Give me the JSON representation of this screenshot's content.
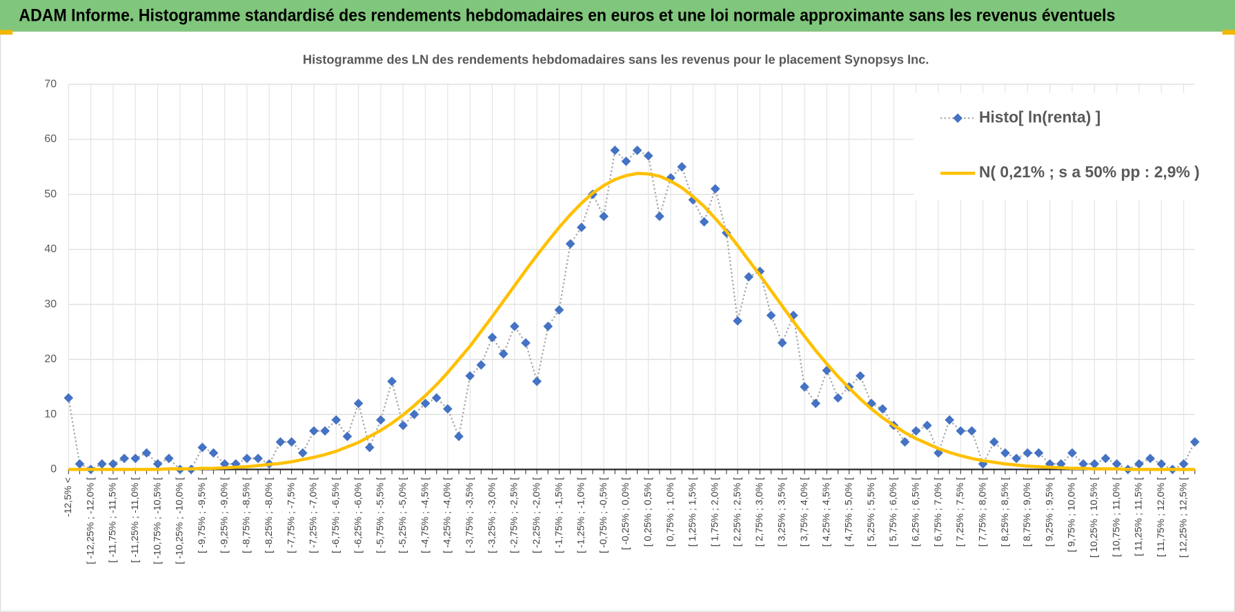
{
  "header": {
    "title": "ADAM Informe. Histogramme standardisé des rendements hebdomadaires en euros et une loi normale approximante sans les revenus éventuels"
  },
  "chart_data": {
    "type": "line",
    "title": "Histogramme des LN des rendements hebdomadaires sans les revenus pour le placement Synopsys Inc.",
    "categories": [
      "-12,5% <",
      null,
      "[ -12,25% ; -12,0% [",
      null,
      "[ -11,75% ; -11,5% [",
      null,
      "[ -11,25% ; -11,0% [",
      null,
      "[ -10,75% ; -10,5% [",
      null,
      "[ -10,25% ; -10,0% [",
      null,
      "[ -9,75% ; -9,5% [",
      null,
      "[ -9,25% ; -9,0% [",
      null,
      "[ -8,75% ; -8,5% [",
      null,
      "[ -8,25% ; -8,0% [",
      null,
      "[ -7,75% ; -7,5% [",
      null,
      "[ -7,25% ; -7,0% [",
      null,
      "[ -6,75% ; -6,5% [",
      null,
      "[ -6,25% ; -6,0% [",
      null,
      "[ -5,75% ; -5,5% [",
      null,
      "[ -5,25% ; -5,0% [",
      null,
      "[ -4,75% ; -4,5% [",
      null,
      "[ -4,25% ; -4,0% [",
      null,
      "[ -3,75% ; -3,5% [",
      null,
      "[ -3,25% ; -3,0% [",
      null,
      "[ -2,75% ; -2,5% [",
      null,
      "[ -2,25% ; -2,0% [",
      null,
      "[ -1,75% ; -1,5% [",
      null,
      "[ -1,25% ; -1,0% [",
      null,
      "[ -0,75% ; -0,5% [",
      null,
      "[ -0,25% ; 0,0% [",
      null,
      "[ 0,25% ; 0,5% [",
      null,
      "[ 0,75% ; 1,0% [",
      null,
      "[ 1,25% ; 1,5% [",
      null,
      "[ 1,75% ; 2,0% [",
      null,
      "[ 2,25% ; 2,5% [",
      null,
      "[ 2,75% ; 3,0% [",
      null,
      "[ 3,25% ; 3,5% [",
      null,
      "[ 3,75% ; 4,0% [",
      null,
      "[ 4,25% ; 4,5% [",
      null,
      "[ 4,75% ; 5,0% [",
      null,
      "[ 5,25% ; 5,5% [",
      null,
      "[ 5,75% ; 6,0% [",
      null,
      "[ 6,25% ; 6,5% [",
      null,
      "[ 6,75% ; 7,0% [",
      null,
      "[ 7,25% ; 7,5% [",
      null,
      "[ 7,75% ; 8,0% [",
      null,
      "[ 8,25% ; 8,5% [",
      null,
      "[ 8,75% ; 9,0% [",
      null,
      "[ 9,25% ; 9,5% [",
      null,
      "[ 9,75% ; 10,0% [",
      null,
      "[ 10,25% ; 10,5% [",
      null,
      "[ 10,75% ; 11,0% [",
      null,
      "[ 11,25% ; 11,5% [",
      null,
      "[ 11,75% ; 12,0% [",
      null,
      "[ 12,25% ; 12,5% [",
      null
    ],
    "series": [
      {
        "name": "Histo[ ln(renta) ]",
        "color": "#4472c4",
        "line_color": "#a6a6a6",
        "marker": "diamond",
        "values": [
          13,
          1,
          0,
          1,
          1,
          2,
          2,
          3,
          1,
          2,
          0,
          0,
          4,
          3,
          1,
          1,
          2,
          2,
          1,
          5,
          5,
          3,
          7,
          7,
          9,
          6,
          12,
          4,
          9,
          16,
          8,
          10,
          12,
          13,
          11,
          6,
          17,
          19,
          24,
          21,
          26,
          23,
          16,
          26,
          29,
          41,
          44,
          50,
          46,
          58,
          56,
          58,
          57,
          46,
          53,
          55,
          49,
          45,
          51,
          43,
          27,
          35,
          36,
          28,
          23,
          28,
          15,
          12,
          18,
          13,
          15,
          17,
          12,
          11,
          8,
          5,
          7,
          8,
          3,
          9,
          7,
          7,
          1,
          5,
          3,
          2,
          3,
          3,
          1,
          1,
          3,
          1,
          1,
          2,
          1,
          0,
          1,
          2,
          1,
          0,
          1,
          5
        ]
      },
      {
        "name": "N( 0,21% ; s a 50% pp : 2,9% )",
        "color": "#ffc000",
        "values": [
          0,
          0,
          0,
          0,
          0,
          0,
          0,
          0,
          0,
          0.1,
          0.1,
          0.1,
          0.2,
          0.2,
          0.3,
          0.4,
          0.5,
          0.7,
          0.9,
          1.1,
          1.4,
          1.8,
          2.2,
          2.7,
          3.3,
          4.1,
          4.9,
          6.0,
          7.1,
          8.4,
          9.9,
          11.6,
          13.4,
          15.4,
          17.6,
          20.0,
          22.4,
          25.1,
          27.8,
          30.6,
          33.4,
          36.2,
          38.9,
          41.5,
          44.0,
          46.3,
          48.4,
          50.2,
          51.6,
          52.7,
          53.4,
          53.8,
          53.7,
          53.3,
          52.4,
          51.2,
          49.6,
          47.8,
          45.6,
          43.3,
          40.7,
          38.0,
          35.3,
          32.5,
          29.7,
          26.9,
          24.2,
          21.6,
          19.2,
          16.9,
          14.8,
          12.8,
          11.0,
          9.4,
          8.0,
          6.7,
          5.6,
          4.7,
          3.8,
          3.1,
          2.5,
          2.0,
          1.6,
          1.3,
          1.0,
          0.8,
          0.6,
          0.5,
          0.4,
          0.3,
          0.2,
          0.2,
          0.1,
          0.1,
          0.1,
          0,
          0,
          0,
          0,
          0,
          0,
          0
        ]
      }
    ],
    "ylim": [
      0,
      70
    ],
    "yticks": [
      0,
      10,
      20,
      30,
      40,
      50,
      60,
      70
    ],
    "grid": true,
    "legend": "upper right"
  }
}
